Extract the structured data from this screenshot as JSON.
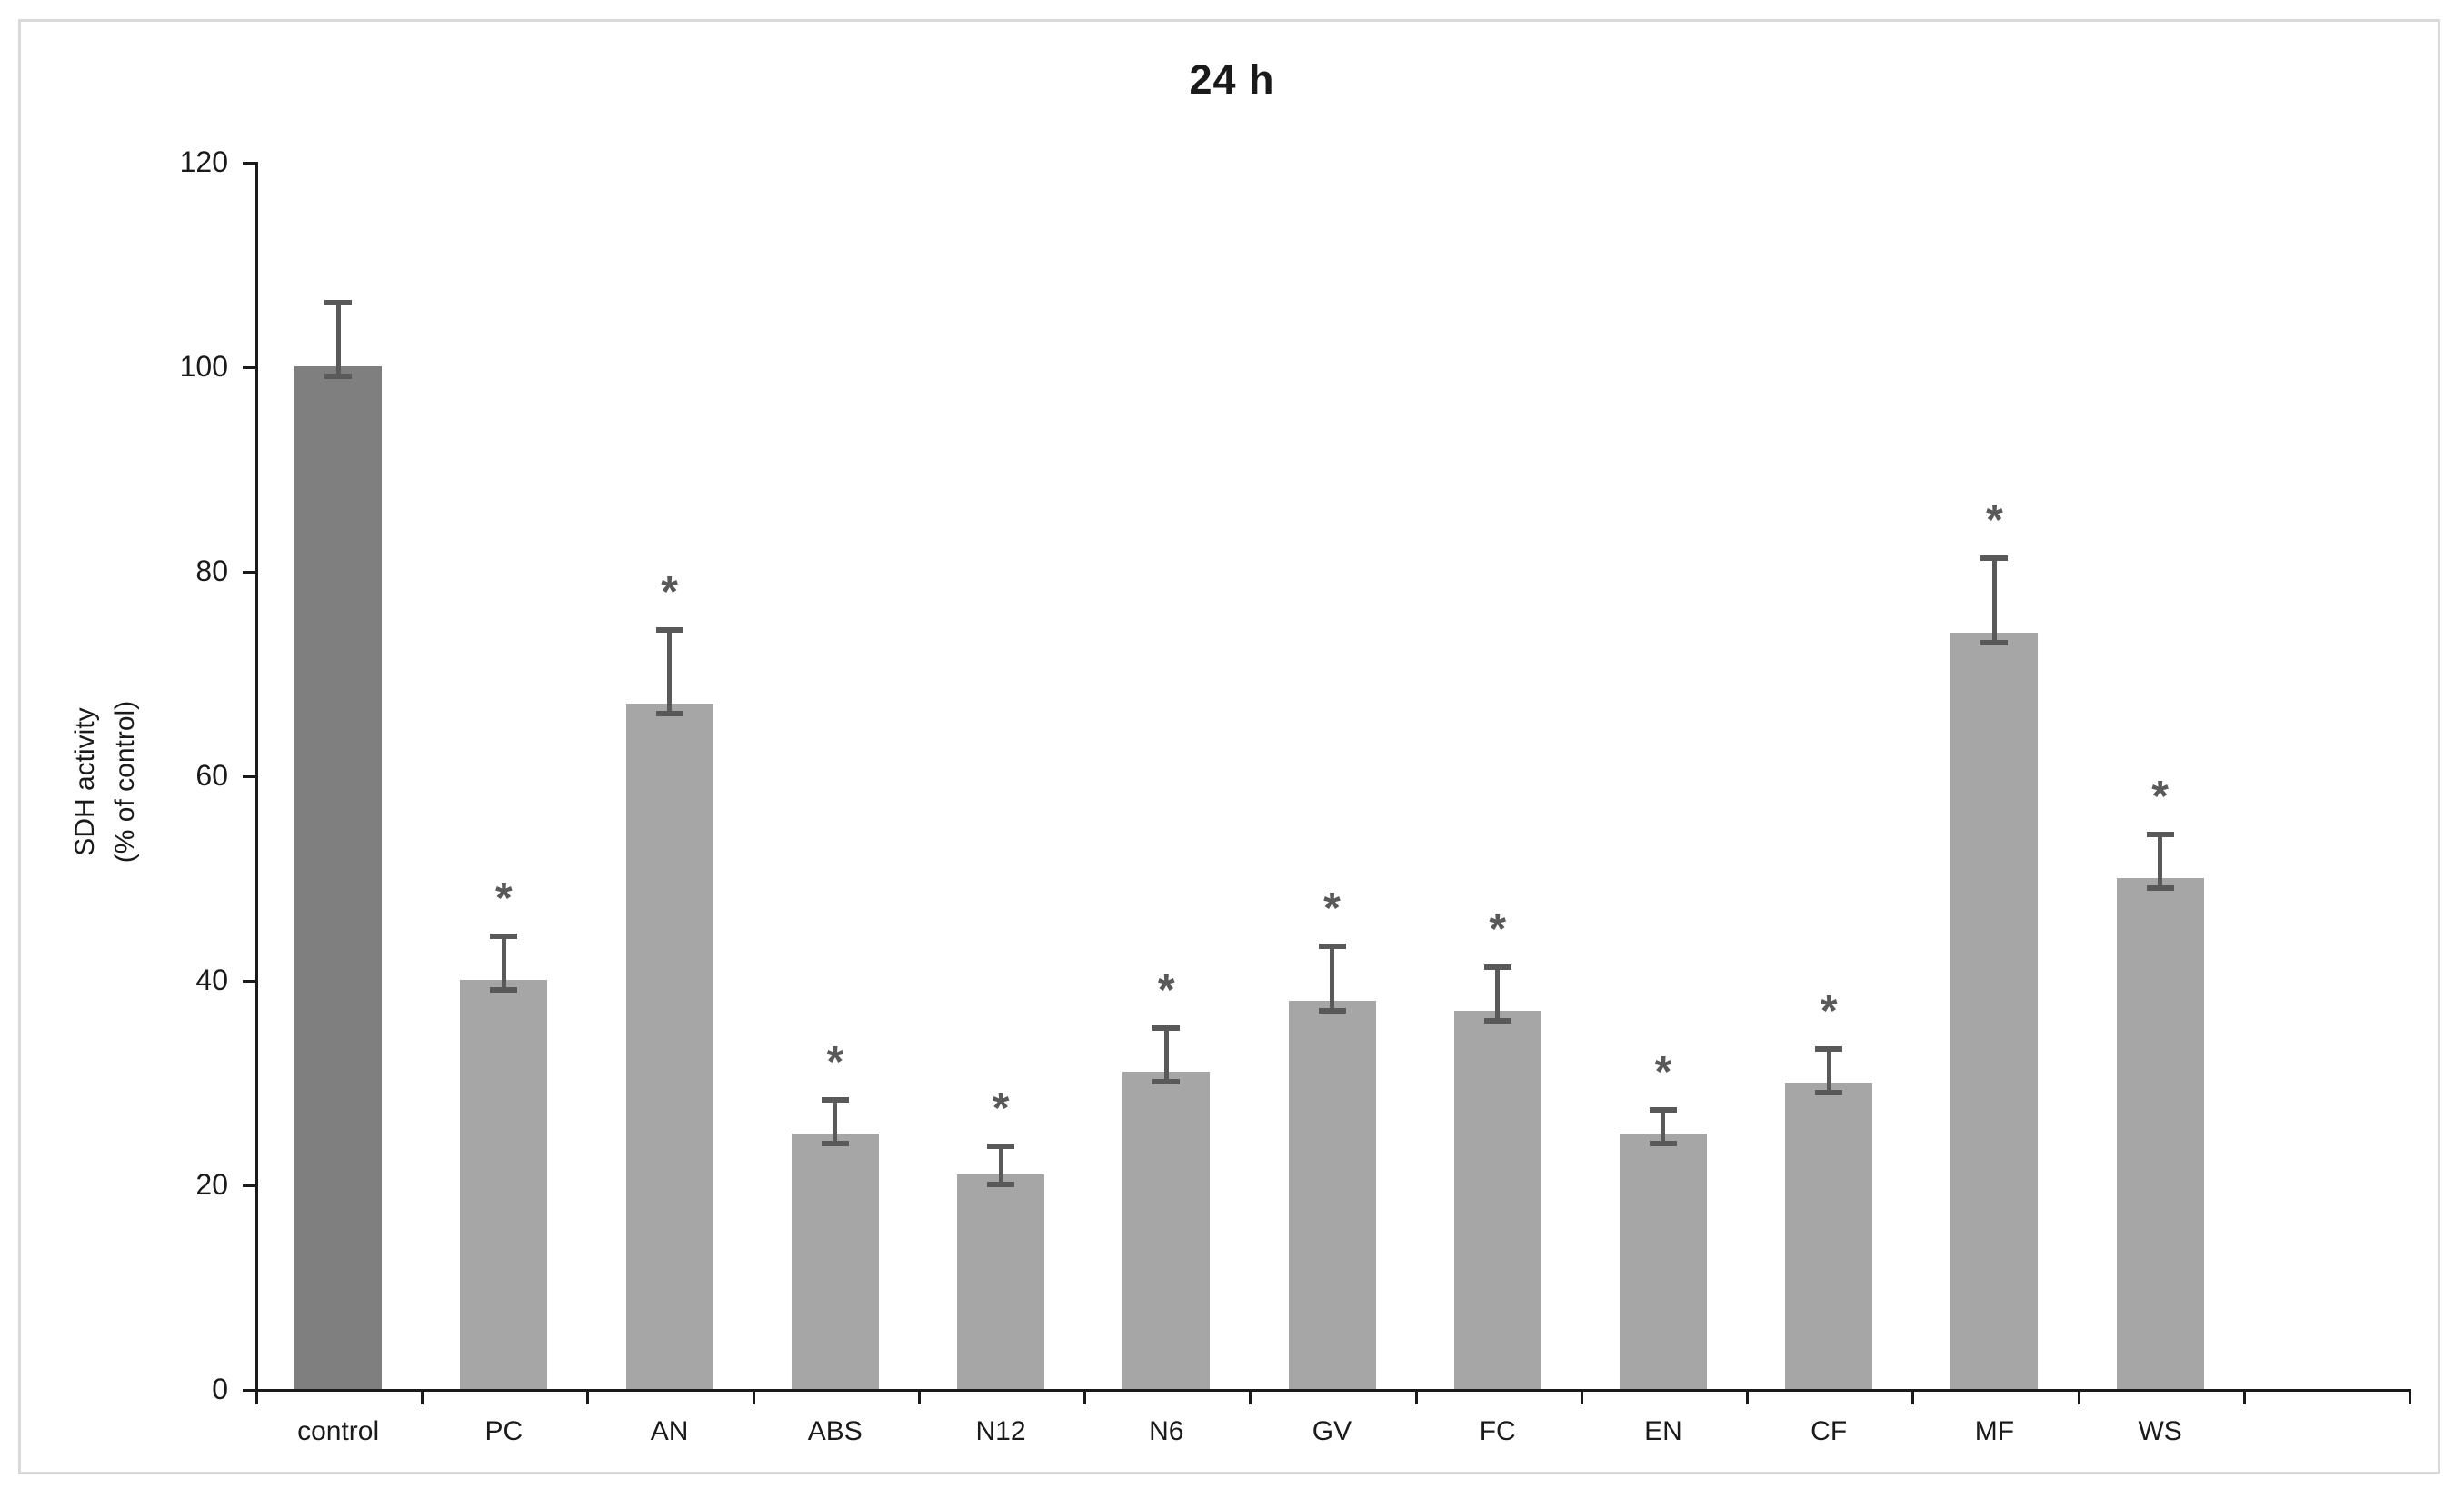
{
  "figure": {
    "title": "24 h",
    "border_color": "#d9d9d9",
    "background_color": "#ffffff"
  },
  "chart_data": {
    "type": "bar",
    "title": "24 h",
    "ylabel_line1": "SDH activity",
    "ylabel_line2": "(% of control)",
    "xlabel": "",
    "ylim": [
      0,
      120
    ],
    "yticks": [
      0,
      20,
      40,
      60,
      80,
      100,
      120
    ],
    "grid": false,
    "legend": "none",
    "categories": [
      "control",
      "PC",
      "AN",
      "ABS",
      "N12",
      "N6",
      "GV",
      "FC",
      "EN",
      "CF",
      "MF",
      "WS"
    ],
    "values": [
      100,
      40,
      67,
      25,
      21,
      31,
      38,
      37,
      25,
      30,
      74,
      50
    ],
    "errors": [
      6,
      4,
      7,
      3,
      2.5,
      4,
      5,
      4,
      2,
      3,
      7,
      4
    ],
    "significant": [
      false,
      true,
      true,
      true,
      true,
      true,
      true,
      true,
      true,
      true,
      true,
      true
    ],
    "significance_marker": "*",
    "control_bar_color": "#7f7f7f",
    "treatment_bar_color": "#a6a6a6",
    "error_bar_color": "#595959",
    "axis_color": "#1a1a1a",
    "empty_trailing_slots": 1
  }
}
